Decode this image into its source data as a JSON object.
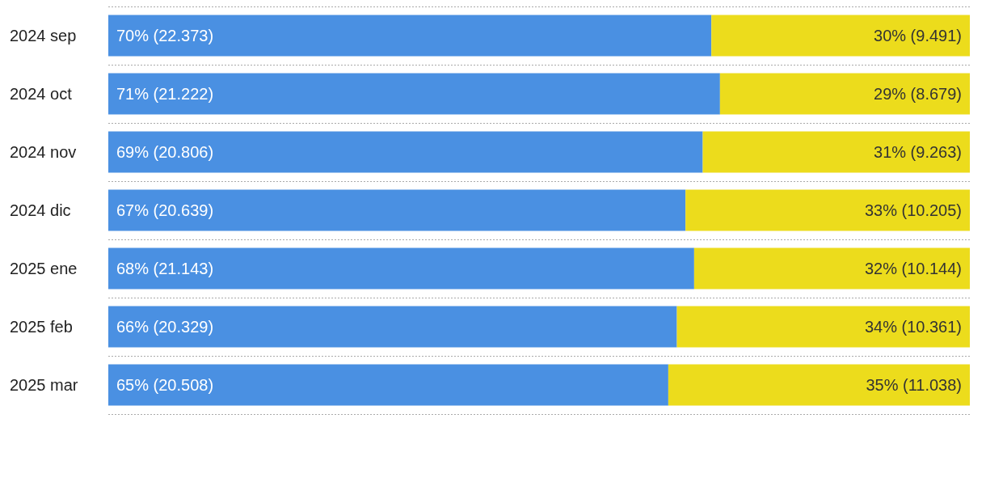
{
  "chart_data": {
    "type": "bar",
    "orientation": "horizontal",
    "stacked": true,
    "categories": [
      "2024 sep",
      "2024 oct",
      "2024 nov",
      "2024 dic",
      "2025 ene",
      "2025 feb",
      "2025 mar"
    ],
    "xlim": [
      0,
      100
    ],
    "tick_labels": "y",
    "grid": "y",
    "series": [
      {
        "color": "#4a90e2",
        "values": [
          70,
          71,
          69,
          67,
          68,
          66,
          65
        ],
        "value_labels": [
          "70% (22.373)",
          "71% (21.222)",
          "69% (20.806)",
          "67% (20.639)",
          "68% (21.143)",
          "66% (20.329)",
          "65% (20.508)"
        ]
      },
      {
        "color": "#ecdc1c",
        "values": [
          30,
          29,
          31,
          33,
          32,
          34,
          35
        ],
        "value_labels": [
          "30% (9.491)",
          "29% (8.679)",
          "31% (9.263)",
          "33% (10.205)",
          "32% (10.144)",
          "34% (10.361)",
          "35% (11.038)"
        ]
      }
    ]
  }
}
